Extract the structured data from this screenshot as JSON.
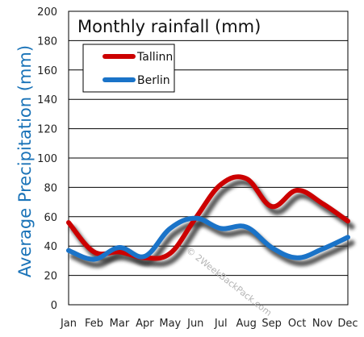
{
  "chart_data": {
    "type": "line",
    "title": "Monthly rainfall (mm)",
    "xlabel": "",
    "ylabel": "Average Precipitation (mm)",
    "categories": [
      "Jan",
      "Feb",
      "Mar",
      "Apr",
      "May",
      "Jun",
      "Jul",
      "Aug",
      "Sep",
      "Oct",
      "Nov",
      "Dec"
    ],
    "ylim": [
      0,
      200
    ],
    "yticks": [
      0,
      20,
      40,
      60,
      80,
      100,
      120,
      140,
      160,
      180,
      200
    ],
    "grid": true,
    "legend_position": "top-left",
    "series": [
      {
        "name": "Tallinn",
        "color": "#cc0000",
        "values": [
          56,
          36,
          36,
          32,
          35,
          59,
          82,
          86,
          67,
          78,
          69,
          57
        ]
      },
      {
        "name": "Berlin",
        "color": "#1a73c8",
        "values": [
          37,
          31,
          39,
          33,
          52,
          59,
          52,
          53,
          39,
          32,
          38,
          46
        ]
      }
    ],
    "watermark": "© 2WeekBackPack.com"
  }
}
